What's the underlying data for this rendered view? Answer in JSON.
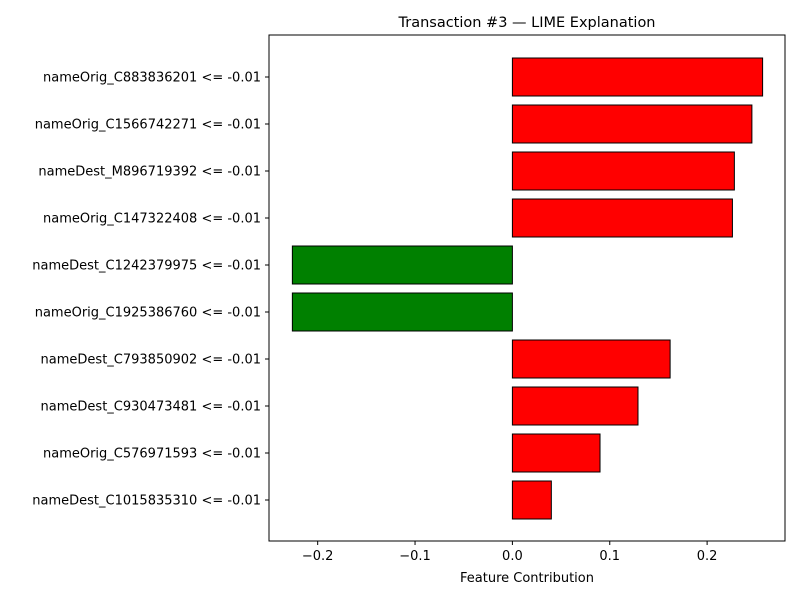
{
  "chart_data": {
    "type": "bar",
    "orientation": "horizontal",
    "title": "Transaction #3 — LIME Explanation",
    "xlabel": "Feature Contribution",
    "ylabel": "",
    "xlim": [
      -0.25,
      0.28
    ],
    "xticks": [
      -0.2,
      -0.1,
      0.0,
      0.1,
      0.2
    ],
    "xtick_labels": [
      "−0.2",
      "−0.1",
      "0.0",
      "0.1",
      "0.2"
    ],
    "grid": false,
    "legend": "none",
    "positive_color": "#ff0000",
    "negative_color": "#008000",
    "categories": [
      "nameOrig_C883836201 <= -0.01",
      "nameOrig_C1566742271 <= -0.01",
      "nameDest_M896719392 <= -0.01",
      "nameOrig_C147322408 <= -0.01",
      "nameDest_C1242379975 <= -0.01",
      "nameOrig_C1925386760 <= -0.01",
      "nameDest_C793850902 <= -0.01",
      "nameDest_C930473481 <= -0.01",
      "nameOrig_C576971593 <= -0.01",
      "nameDest_C1015835310 <= -0.01"
    ],
    "values": [
      0.257,
      0.246,
      0.228,
      0.226,
      -0.226,
      -0.226,
      0.162,
      0.129,
      0.09,
      0.04
    ]
  }
}
